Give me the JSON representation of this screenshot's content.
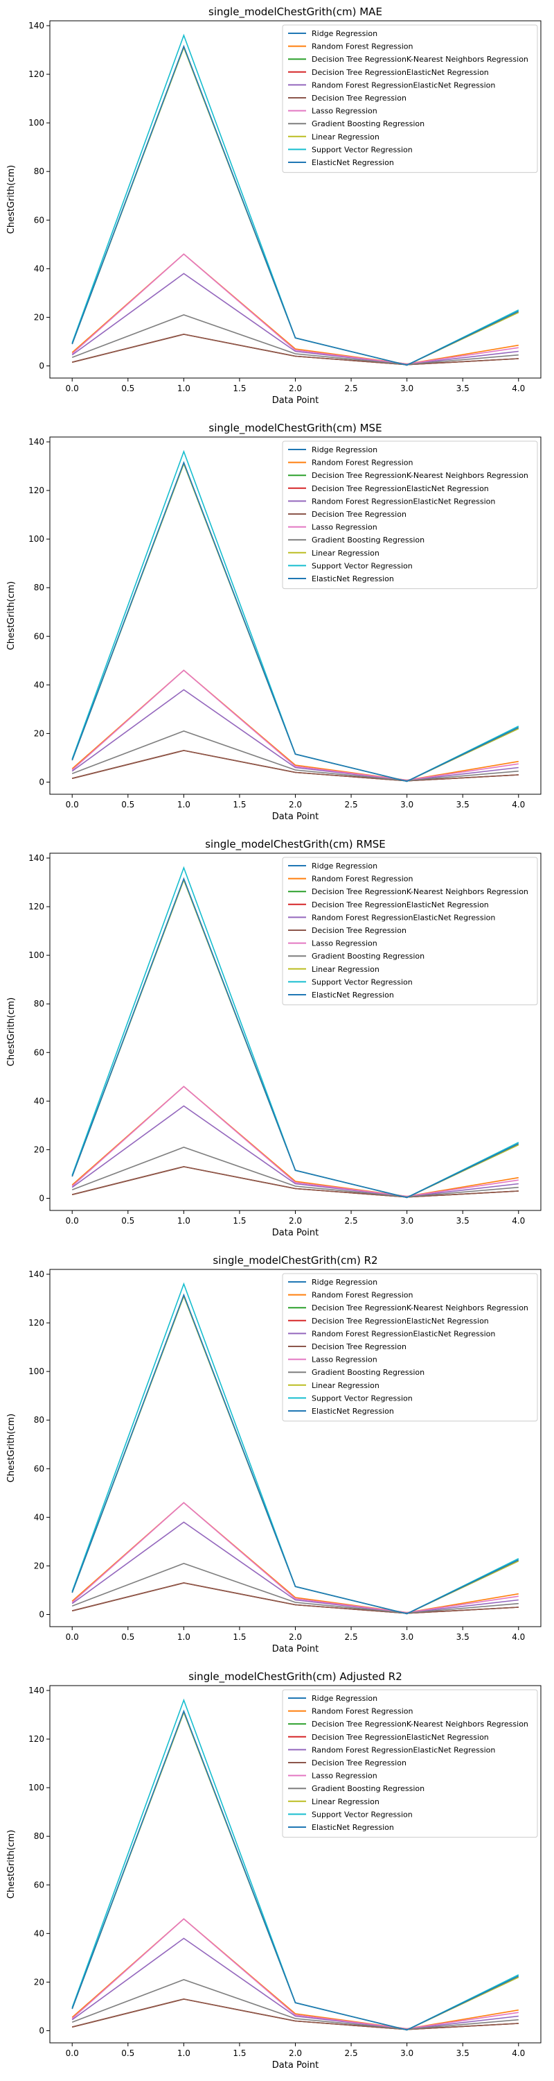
{
  "chart_data": [
    {
      "type": "line",
      "title": "single_modelChestGrith(cm) MAE",
      "xlabel": "Data Point",
      "ylabel": "ChestGrith(cm)",
      "xlim": [
        -0.2,
        4.2
      ],
      "ylim": [
        -5,
        142
      ],
      "xticks": [
        "0.0",
        "0.5",
        "1.0",
        "1.5",
        "2.0",
        "2.5",
        "3.0",
        "3.5",
        "4.0"
      ],
      "yticks": [
        "0",
        "20",
        "40",
        "60",
        "80",
        "100",
        "120",
        "140"
      ],
      "grid": false,
      "legend_position": "top-right",
      "x": [
        0,
        1,
        2,
        3,
        4
      ],
      "series": [
        {
          "name": "Ridge Regression",
          "color": "#1f77b4",
          "values": [
            9,
            131,
            11.5,
            0.3,
            22
          ]
        },
        {
          "name": "Random Forest Regression",
          "color": "#ff7f0e",
          "values": [
            5.5,
            46,
            7,
            0.8,
            8.5
          ]
        },
        {
          "name": "Decision Tree RegressionK-Nearest Neighbors Regression",
          "color": "#2ca02c",
          "values": [
            1.5,
            13,
            4,
            0.5,
            3
          ]
        },
        {
          "name": "Decision Tree RegressionElasticNet Regression",
          "color": "#d62728",
          "values": [
            1.5,
            13,
            4,
            0.5,
            3
          ]
        },
        {
          "name": "Random Forest RegressionElasticNet Regression",
          "color": "#9467bd",
          "values": [
            4.5,
            38,
            6,
            0.7,
            6
          ]
        },
        {
          "name": "Decision Tree Regression",
          "color": "#8c564b",
          "values": [
            1.5,
            13,
            4,
            0.5,
            3
          ]
        },
        {
          "name": "Lasso Regression",
          "color": "#e377c2",
          "values": [
            5,
            46,
            6.5,
            0.8,
            7.5
          ]
        },
        {
          "name": "Gradient Boosting Regression",
          "color": "#7f7f7f",
          "values": [
            3.5,
            21,
            5,
            0.6,
            4.5
          ]
        },
        {
          "name": "Linear Regression",
          "color": "#bcbd22",
          "values": [
            9,
            131,
            11.5,
            0.3,
            22
          ]
        },
        {
          "name": "Support Vector Regression",
          "color": "#17becf",
          "values": [
            9.5,
            136,
            11.5,
            0.3,
            23
          ]
        },
        {
          "name": "ElasticNet Regression",
          "color": "#1f77b4",
          "values": [
            9,
            131.5,
            11.5,
            0.3,
            22.5
          ]
        }
      ]
    },
    {
      "type": "line",
      "title": "single_modelChestGrith(cm) MSE",
      "xlabel": "Data Point",
      "ylabel": "ChestGrith(cm)",
      "xlim": [
        -0.2,
        4.2
      ],
      "ylim": [
        -5,
        142
      ],
      "xticks": [
        "0.0",
        "0.5",
        "1.0",
        "1.5",
        "2.0",
        "2.5",
        "3.0",
        "3.5",
        "4.0"
      ],
      "yticks": [
        "0",
        "20",
        "40",
        "60",
        "80",
        "100",
        "120",
        "140"
      ],
      "grid": false,
      "legend_position": "top-right",
      "x": [
        0,
        1,
        2,
        3,
        4
      ],
      "series": [
        {
          "name": "Ridge Regression",
          "color": "#1f77b4",
          "values": [
            9,
            131,
            11.5,
            0.3,
            22
          ]
        },
        {
          "name": "Random Forest Regression",
          "color": "#ff7f0e",
          "values": [
            5.5,
            46,
            7,
            0.8,
            8.5
          ]
        },
        {
          "name": "Decision Tree RegressionK-Nearest Neighbors Regression",
          "color": "#2ca02c",
          "values": [
            1.5,
            13,
            4,
            0.5,
            3
          ]
        },
        {
          "name": "Decision Tree RegressionElasticNet Regression",
          "color": "#d62728",
          "values": [
            1.5,
            13,
            4,
            0.5,
            3
          ]
        },
        {
          "name": "Random Forest RegressionElasticNet Regression",
          "color": "#9467bd",
          "values": [
            4.5,
            38,
            6,
            0.7,
            6
          ]
        },
        {
          "name": "Decision Tree Regression",
          "color": "#8c564b",
          "values": [
            1.5,
            13,
            4,
            0.5,
            3
          ]
        },
        {
          "name": "Lasso Regression",
          "color": "#e377c2",
          "values": [
            5,
            46,
            6.5,
            0.8,
            7.5
          ]
        },
        {
          "name": "Gradient Boosting Regression",
          "color": "#7f7f7f",
          "values": [
            3.5,
            21,
            5,
            0.6,
            4.5
          ]
        },
        {
          "name": "Linear Regression",
          "color": "#bcbd22",
          "values": [
            9,
            131,
            11.5,
            0.3,
            22
          ]
        },
        {
          "name": "Support Vector Regression",
          "color": "#17becf",
          "values": [
            9.5,
            136,
            11.5,
            0.3,
            23
          ]
        },
        {
          "name": "ElasticNet Regression",
          "color": "#1f77b4",
          "values": [
            9,
            131.5,
            11.5,
            0.3,
            22.5
          ]
        }
      ]
    },
    {
      "type": "line",
      "title": "single_modelChestGrith(cm) RMSE",
      "xlabel": "Data Point",
      "ylabel": "ChestGrith(cm)",
      "xlim": [
        -0.2,
        4.2
      ],
      "ylim": [
        -5,
        142
      ],
      "xticks": [
        "0.0",
        "0.5",
        "1.0",
        "1.5",
        "2.0",
        "2.5",
        "3.0",
        "3.5",
        "4.0"
      ],
      "yticks": [
        "0",
        "20",
        "40",
        "60",
        "80",
        "100",
        "120",
        "140"
      ],
      "grid": false,
      "legend_position": "top-right",
      "x": [
        0,
        1,
        2,
        3,
        4
      ],
      "series": [
        {
          "name": "Ridge Regression",
          "color": "#1f77b4",
          "values": [
            9,
            131,
            11.5,
            0.3,
            22
          ]
        },
        {
          "name": "Random Forest Regression",
          "color": "#ff7f0e",
          "values": [
            5.5,
            46,
            7,
            0.8,
            8.5
          ]
        },
        {
          "name": "Decision Tree RegressionK-Nearest Neighbors Regression",
          "color": "#2ca02c",
          "values": [
            1.5,
            13,
            4,
            0.5,
            3
          ]
        },
        {
          "name": "Decision Tree RegressionElasticNet Regression",
          "color": "#d62728",
          "values": [
            1.5,
            13,
            4,
            0.5,
            3
          ]
        },
        {
          "name": "Random Forest RegressionElasticNet Regression",
          "color": "#9467bd",
          "values": [
            4.5,
            38,
            6,
            0.7,
            6
          ]
        },
        {
          "name": "Decision Tree Regression",
          "color": "#8c564b",
          "values": [
            1.5,
            13,
            4,
            0.5,
            3
          ]
        },
        {
          "name": "Lasso Regression",
          "color": "#e377c2",
          "values": [
            5,
            46,
            6.5,
            0.8,
            7.5
          ]
        },
        {
          "name": "Gradient Boosting Regression",
          "color": "#7f7f7f",
          "values": [
            3.5,
            21,
            5,
            0.6,
            4.5
          ]
        },
        {
          "name": "Linear Regression",
          "color": "#bcbd22",
          "values": [
            9,
            131,
            11.5,
            0.3,
            22
          ]
        },
        {
          "name": "Support Vector Regression",
          "color": "#17becf",
          "values": [
            9.5,
            136,
            11.5,
            0.3,
            23
          ]
        },
        {
          "name": "ElasticNet Regression",
          "color": "#1f77b4",
          "values": [
            9,
            131.5,
            11.5,
            0.3,
            22.5
          ]
        }
      ]
    },
    {
      "type": "line",
      "title": "single_modelChestGrith(cm) R2",
      "xlabel": "Data Point",
      "ylabel": "ChestGrith(cm)",
      "xlim": [
        -0.2,
        4.2
      ],
      "ylim": [
        -5,
        142
      ],
      "xticks": [
        "0.0",
        "0.5",
        "1.0",
        "1.5",
        "2.0",
        "2.5",
        "3.0",
        "3.5",
        "4.0"
      ],
      "yticks": [
        "0",
        "20",
        "40",
        "60",
        "80",
        "100",
        "120",
        "140"
      ],
      "grid": false,
      "legend_position": "top-right",
      "x": [
        0,
        1,
        2,
        3,
        4
      ],
      "series": [
        {
          "name": "Ridge Regression",
          "color": "#1f77b4",
          "values": [
            9,
            131,
            11.5,
            0.3,
            22
          ]
        },
        {
          "name": "Random Forest Regression",
          "color": "#ff7f0e",
          "values": [
            5.5,
            46,
            7,
            0.8,
            8.5
          ]
        },
        {
          "name": "Decision Tree RegressionK-Nearest Neighbors Regression",
          "color": "#2ca02c",
          "values": [
            1.5,
            13,
            4,
            0.5,
            3
          ]
        },
        {
          "name": "Decision Tree RegressionElasticNet Regression",
          "color": "#d62728",
          "values": [
            1.5,
            13,
            4,
            0.5,
            3
          ]
        },
        {
          "name": "Random Forest RegressionElasticNet Regression",
          "color": "#9467bd",
          "values": [
            4.5,
            38,
            6,
            0.7,
            6
          ]
        },
        {
          "name": "Decision Tree Regression",
          "color": "#8c564b",
          "values": [
            1.5,
            13,
            4,
            0.5,
            3
          ]
        },
        {
          "name": "Lasso Regression",
          "color": "#e377c2",
          "values": [
            5,
            46,
            6.5,
            0.8,
            7.5
          ]
        },
        {
          "name": "Gradient Boosting Regression",
          "color": "#7f7f7f",
          "values": [
            3.5,
            21,
            5,
            0.6,
            4.5
          ]
        },
        {
          "name": "Linear Regression",
          "color": "#bcbd22",
          "values": [
            9,
            131,
            11.5,
            0.3,
            22
          ]
        },
        {
          "name": "Support Vector Regression",
          "color": "#17becf",
          "values": [
            9.5,
            136,
            11.5,
            0.3,
            23
          ]
        },
        {
          "name": "ElasticNet Regression",
          "color": "#1f77b4",
          "values": [
            9,
            131.5,
            11.5,
            0.3,
            22.5
          ]
        }
      ]
    },
    {
      "type": "line",
      "title": "single_modelChestGrith(cm) Adjusted R2",
      "xlabel": "Data Point",
      "ylabel": "ChestGrith(cm)",
      "xlim": [
        -0.2,
        4.2
      ],
      "ylim": [
        -5,
        142
      ],
      "xticks": [
        "0.0",
        "0.5",
        "1.0",
        "1.5",
        "2.0",
        "2.5",
        "3.0",
        "3.5",
        "4.0"
      ],
      "yticks": [
        "0",
        "20",
        "40",
        "60",
        "80",
        "100",
        "120",
        "140"
      ],
      "grid": false,
      "legend_position": "top-right",
      "x": [
        0,
        1,
        2,
        3,
        4
      ],
      "series": [
        {
          "name": "Ridge Regression",
          "color": "#1f77b4",
          "values": [
            9,
            131,
            11.5,
            0.3,
            22
          ]
        },
        {
          "name": "Random Forest Regression",
          "color": "#ff7f0e",
          "values": [
            5.5,
            46,
            7,
            0.8,
            8.5
          ]
        },
        {
          "name": "Decision Tree RegressionK-Nearest Neighbors Regression",
          "color": "#2ca02c",
          "values": [
            1.5,
            13,
            4,
            0.5,
            3
          ]
        },
        {
          "name": "Decision Tree RegressionElasticNet Regression",
          "color": "#d62728",
          "values": [
            1.5,
            13,
            4,
            0.5,
            3
          ]
        },
        {
          "name": "Random Forest RegressionElasticNet Regression",
          "color": "#9467bd",
          "values": [
            4.5,
            38,
            6,
            0.7,
            6
          ]
        },
        {
          "name": "Decision Tree Regression",
          "color": "#8c564b",
          "values": [
            1.5,
            13,
            4,
            0.5,
            3
          ]
        },
        {
          "name": "Lasso Regression",
          "color": "#e377c2",
          "values": [
            5,
            46,
            6.5,
            0.8,
            7.5
          ]
        },
        {
          "name": "Gradient Boosting Regression",
          "color": "#7f7f7f",
          "values": [
            3.5,
            21,
            5,
            0.6,
            4.5
          ]
        },
        {
          "name": "Linear Regression",
          "color": "#bcbd22",
          "values": [
            9,
            131,
            11.5,
            0.3,
            22
          ]
        },
        {
          "name": "Support Vector Regression",
          "color": "#17becf",
          "values": [
            9.5,
            136,
            11.5,
            0.3,
            23
          ]
        },
        {
          "name": "ElasticNet Regression",
          "color": "#1f77b4",
          "values": [
            9,
            131.5,
            11.5,
            0.3,
            22.5
          ]
        }
      ]
    }
  ]
}
